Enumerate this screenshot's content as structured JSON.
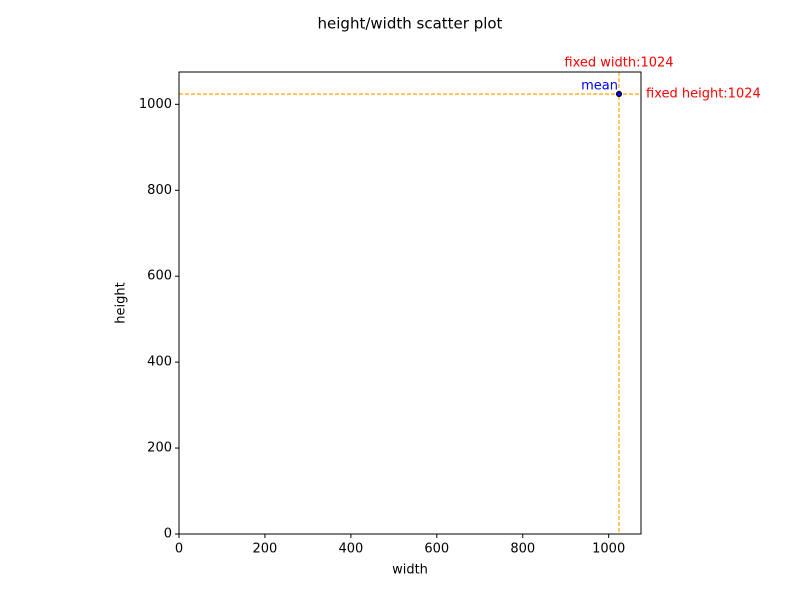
{
  "chart_data": {
    "type": "scatter",
    "title": "height/width scatter plot",
    "x_label": "width",
    "y_label": "height",
    "series": [
      {
        "x": [
          1024
        ],
        "values": [
          1024
        ],
        "color": "#1f3fbf"
      }
    ],
    "mean": {
      "x": 1024,
      "y": 1024,
      "label": "mean",
      "color": "blue"
    },
    "reference_lines": [
      {
        "axis": "x",
        "value": 1024,
        "label": "fixed width:1024",
        "color": "orange",
        "label_color": "red"
      },
      {
        "axis": "y",
        "value": 1024,
        "label": "fixed height:1024",
        "color": "orange",
        "label_color": "red"
      }
    ],
    "xlim": [
      0,
      1075.2
    ],
    "ylim": [
      0,
      1075.2
    ],
    "xticks": [
      0,
      200,
      400,
      600,
      800,
      1000
    ],
    "yticks": [
      0,
      200,
      400,
      600,
      800,
      1000
    ]
  }
}
